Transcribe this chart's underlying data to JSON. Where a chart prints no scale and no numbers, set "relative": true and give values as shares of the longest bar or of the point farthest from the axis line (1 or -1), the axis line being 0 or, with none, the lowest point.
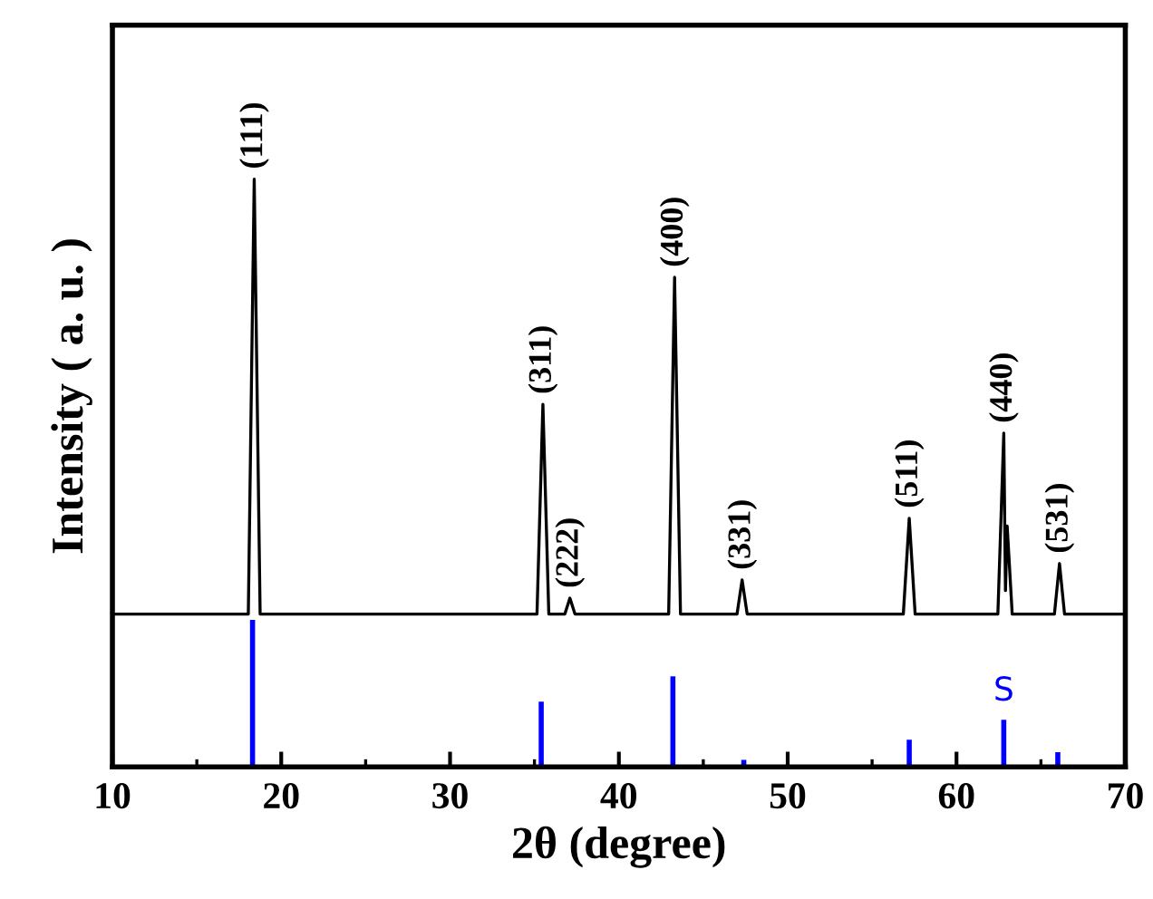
{
  "chart_data": {
    "type": "line",
    "relative": true,
    "xlabel": "2θ (degree)",
    "ylabel": "Intensity ( a. u. )",
    "xlim": [
      10,
      70
    ],
    "xticks": [
      10,
      20,
      30,
      40,
      50,
      60,
      70
    ],
    "grid": false,
    "legend": false,
    "marker": "none",
    "line_style": "solid",
    "series": [
      {
        "color": "#000000",
        "x": [
          10,
          18.05,
          18.4,
          18.75,
          35.15,
          35.5,
          35.85,
          36.8,
          37.1,
          37.4,
          42.95,
          43.3,
          43.65,
          47.0,
          47.3,
          47.6,
          56.85,
          57.2,
          57.55,
          62.45,
          62.8,
          62.9,
          63.0,
          63.3,
          65.8,
          66.1,
          66.4,
          70
        ],
        "values": [
          0.26,
          0.26,
          1.0,
          0.26,
          0.26,
          0.617,
          0.26,
          0.26,
          0.287,
          0.26,
          0.26,
          0.833,
          0.26,
          0.26,
          0.318,
          0.26,
          0.26,
          0.423,
          0.26,
          0.26,
          0.568,
          0.3,
          0.41,
          0.26,
          0.26,
          0.346,
          0.26,
          0.26
        ]
      },
      {
        "type": "bar",
        "color": "#0000ff",
        "x": [
          18.3,
          35.4,
          43.2,
          47.4,
          57.2,
          62.8,
          66.0
        ],
        "values": [
          0.25,
          0.111,
          0.154,
          0.012,
          0.046,
          0.08,
          0.025
        ]
      }
    ],
    "annotations": [
      {
        "text": "(111)",
        "x": 18.4,
        "y": 1.0
      },
      {
        "text": "(311)",
        "x": 35.5,
        "y": 0.617
      },
      {
        "text": "(222)",
        "x": 37.1,
        "y": 0.287
      },
      {
        "text": "(400)",
        "x": 43.3,
        "y": 0.833
      },
      {
        "text": "(331)",
        "x": 47.3,
        "y": 0.318
      },
      {
        "text": "(511)",
        "x": 57.2,
        "y": 0.423
      },
      {
        "text": "(440)",
        "x": 62.8,
        "y": 0.568
      },
      {
        "text": "(531)",
        "x": 66.1,
        "y": 0.346
      },
      {
        "text": "S",
        "x": 62.8,
        "y": 0.08
      }
    ]
  }
}
